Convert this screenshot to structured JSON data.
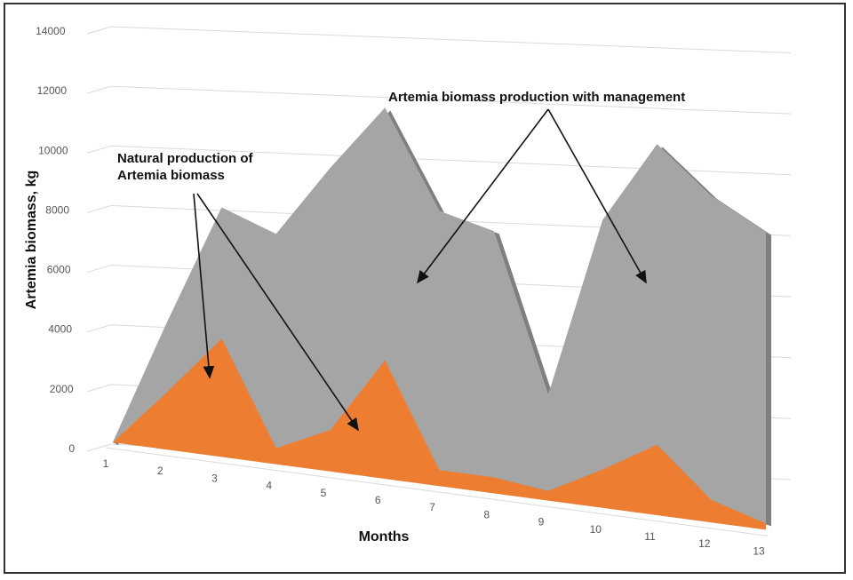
{
  "chart_data": {
    "type": "area",
    "style": "3d",
    "title": "",
    "xlabel": "Months",
    "ylabel": "Artemia biomass, kg",
    "ylim": [
      0,
      14000
    ],
    "yticks": [
      "0",
      "2000",
      "4000",
      "6000",
      "8000",
      "10000",
      "12000",
      "14000"
    ],
    "categories": [
      "1",
      "2",
      "3",
      "4",
      "5",
      "6",
      "7",
      "8",
      "9",
      "10",
      "11",
      "12",
      "13"
    ],
    "grid": true,
    "series": [
      {
        "key": "managed",
        "color": "#a5a5a5",
        "values": [
          0,
          4000,
          7800,
          7200,
          9500,
          11600,
          8600,
          8200,
          3300,
          9000,
          11600,
          10200,
          9300
        ]
      },
      {
        "key": "natural",
        "color": "#ed7d31",
        "values": [
          0,
          1800,
          3700,
          500,
          1300,
          3700,
          500,
          500,
          300,
          1200,
          2200,
          700,
          200
        ]
      }
    ],
    "annotations": [
      {
        "text": "Artemia biomass production with management"
      },
      {
        "text_line1": "Natural production of",
        "text_line2": "Artemia biomass"
      }
    ]
  }
}
